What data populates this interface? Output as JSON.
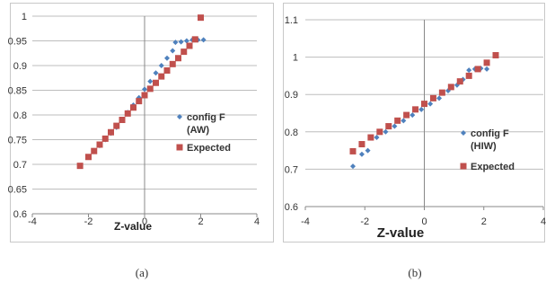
{
  "chart_data": [
    {
      "type": "scatter",
      "caption": "(a)",
      "xlabel": "Z-value",
      "xlim": [
        -4,
        4
      ],
      "ylim": [
        0.6,
        1
      ],
      "xticks": [
        "-4",
        "-2",
        "0",
        "2",
        "4"
      ],
      "yticks": [
        "0.6",
        "0.65",
        "0.7",
        "0.75",
        "0.8",
        "0.85",
        "0.9",
        "0.95",
        "1"
      ],
      "grid": "horizontal",
      "legend_position": "right",
      "colors": {
        "config": "#4f81bd",
        "expected": "#c0504d"
      },
      "series": [
        {
          "name": "config F (AW)",
          "name_lines": [
            "config F",
            "(AW)"
          ],
          "marker": "diamond",
          "x": [
            -1.8,
            -1.6,
            -1.4,
            -1.2,
            -1.0,
            -0.8,
            -0.6,
            -0.4,
            -0.2,
            0.0,
            0.2,
            0.4,
            0.6,
            0.8,
            1.0,
            1.1,
            1.3,
            1.5,
            1.7,
            1.9,
            2.1
          ],
          "y": [
            0.728,
            0.738,
            0.75,
            0.763,
            0.775,
            0.79,
            0.805,
            0.82,
            0.835,
            0.852,
            0.868,
            0.885,
            0.9,
            0.915,
            0.93,
            0.947,
            0.948,
            0.95,
            0.952,
            0.952,
            0.952
          ]
        },
        {
          "name": "Expected",
          "name_lines": [
            "Expected"
          ],
          "marker": "square",
          "x": [
            -2.3,
            -2.0,
            -1.8,
            -1.6,
            -1.4,
            -1.2,
            -1.0,
            -0.8,
            -0.6,
            -0.4,
            -0.2,
            0.0,
            0.2,
            0.4,
            0.6,
            0.8,
            1.0,
            1.2,
            1.4,
            1.6,
            1.8,
            2.0
          ],
          "y": [
            0.697,
            0.715,
            0.727,
            0.74,
            0.752,
            0.765,
            0.778,
            0.79,
            0.803,
            0.815,
            0.828,
            0.84,
            0.853,
            0.865,
            0.878,
            0.89,
            0.903,
            0.915,
            0.928,
            0.94,
            0.953,
            0.997
          ]
        }
      ]
    },
    {
      "type": "scatter",
      "caption": "(b)",
      "xlabel": "Z-value",
      "xlim": [
        -4,
        4
      ],
      "ylim": [
        0.6,
        1.1
      ],
      "xticks": [
        "-4",
        "-2",
        "0",
        "2",
        "4"
      ],
      "yticks": [
        "0.6",
        "0.7",
        "0.8",
        "0.9",
        "1",
        "1.1"
      ],
      "grid": "horizontal",
      "legend_position": "right",
      "colors": {
        "config": "#4f81bd",
        "expected": "#c0504d"
      },
      "series": [
        {
          "name": "config F (HIW)",
          "name_lines": [
            "config F",
            "(HIW)"
          ],
          "marker": "diamond",
          "x": [
            -2.4,
            -2.1,
            -1.9,
            -1.6,
            -1.3,
            -1.0,
            -0.7,
            -0.4,
            -0.1,
            0.2,
            0.5,
            0.8,
            1.1,
            1.3,
            1.5,
            1.7,
            1.9,
            2.1
          ],
          "y": [
            0.708,
            0.74,
            0.75,
            0.785,
            0.8,
            0.815,
            0.83,
            0.845,
            0.86,
            0.875,
            0.89,
            0.91,
            0.925,
            0.94,
            0.965,
            0.968,
            0.97,
            0.968
          ]
        },
        {
          "name": "Expected",
          "name_lines": [
            "Expected"
          ],
          "marker": "square",
          "x": [
            -2.4,
            -2.1,
            -1.8,
            -1.5,
            -1.2,
            -0.9,
            -0.6,
            -0.3,
            0.0,
            0.3,
            0.6,
            0.9,
            1.2,
            1.5,
            1.8,
            2.1,
            2.4
          ],
          "y": [
            0.748,
            0.767,
            0.785,
            0.8,
            0.815,
            0.83,
            0.845,
            0.86,
            0.875,
            0.89,
            0.905,
            0.92,
            0.935,
            0.95,
            0.968,
            0.985,
            1.005
          ]
        }
      ]
    }
  ]
}
